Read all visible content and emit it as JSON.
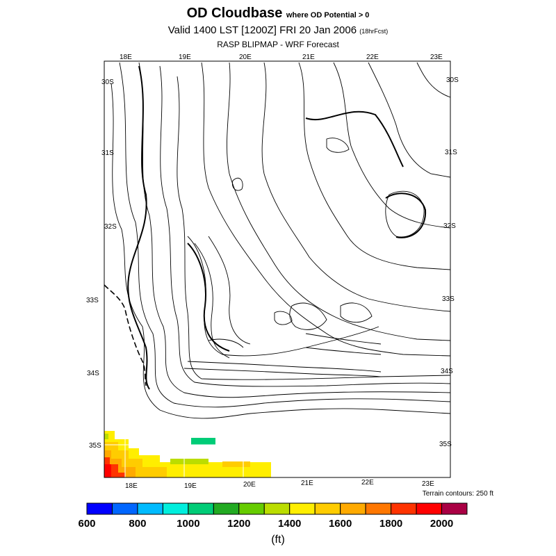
{
  "header": {
    "title": "OD Cloudbase",
    "title_suffix": "where OD Potential > 0",
    "valid_line": "Valid 1400 LST [1200Z] FRI 20 Jan 2006",
    "forecast_hours": "(18hrFcst)",
    "product": "RASP BLIPMAP - WRF Forecast"
  },
  "map": {
    "top_lon_labels": [
      "18E",
      "19E",
      "20E",
      "21E",
      "22E",
      "23E"
    ],
    "bottom_lon_labels": [
      "18E",
      "19E",
      "20E",
      "21E",
      "22E",
      "23E"
    ],
    "left_lat_labels": [
      "30S",
      "31S",
      "32S",
      "33S",
      "34S",
      "35S"
    ],
    "right_lat_labels": [
      "30S",
      "31S",
      "32S",
      "33S",
      "34S",
      "35S"
    ],
    "terrain_note": "Terrain contours: 250 ft"
  },
  "colorbar": {
    "colors": [
      "#0000ff",
      "#0066ff",
      "#00bbff",
      "#00eedd",
      "#00cc77",
      "#22aa22",
      "#66cc00",
      "#bbdd00",
      "#ffee00",
      "#ffcc00",
      "#ffaa00",
      "#ff7700",
      "#ff3300",
      "#ff0000",
      "#aa0044"
    ],
    "labels": [
      "600",
      "800",
      "1000",
      "1200",
      "1400",
      "1600",
      "1800",
      "2000"
    ],
    "units": "(ft)"
  }
}
